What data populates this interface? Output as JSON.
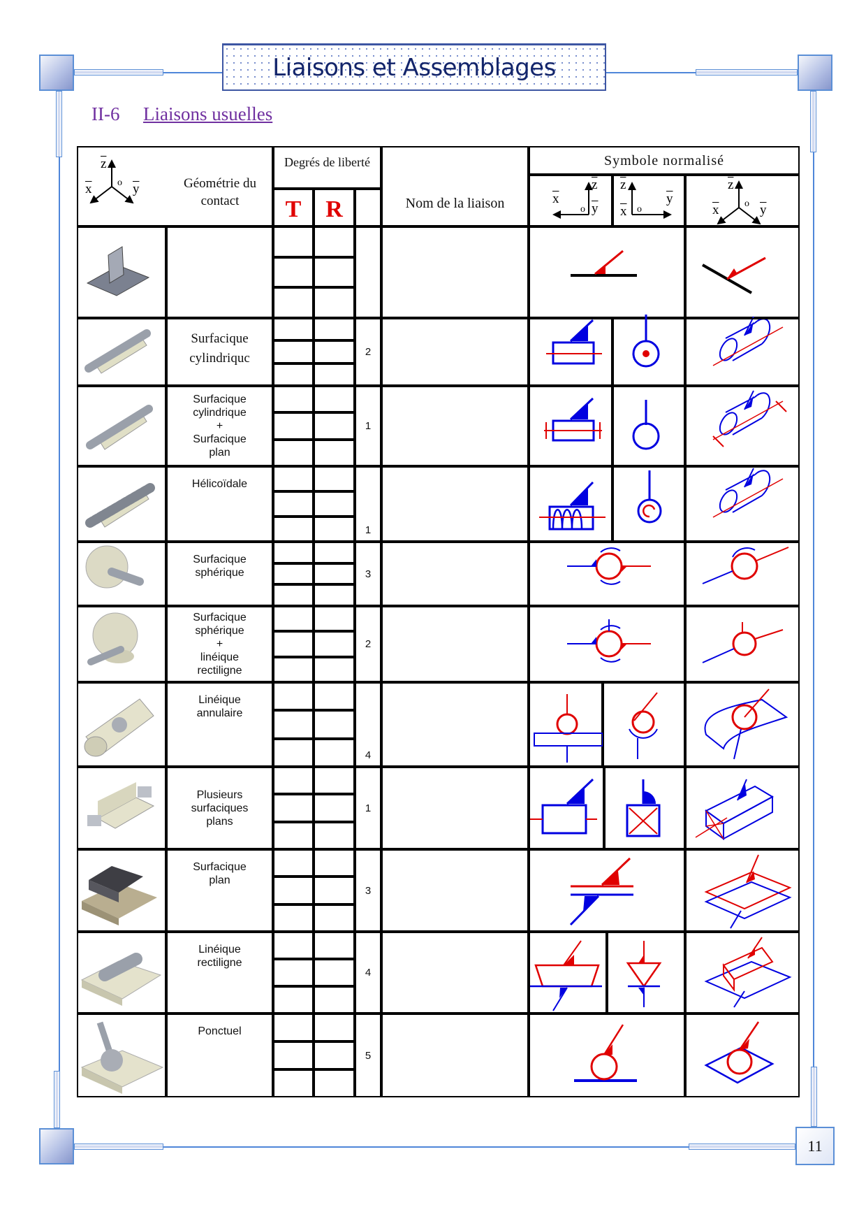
{
  "header": {
    "title": "Liaisons et Assemblages"
  },
  "section": {
    "number": "II-6",
    "title": "Liaisons usuelles"
  },
  "table": {
    "headers": {
      "geometry": "Géométrie du contact",
      "dof": "Degrés de liberté",
      "t": "T",
      "r": "R",
      "name": "Nom de la liaison",
      "symbol": "Symbole normalisé"
    },
    "axes_labels": {
      "x": "x",
      "y": "y",
      "z": "z",
      "o": "o"
    },
    "rows": [
      {
        "contact": [],
        "dof": "",
        "image": "plate-with-rib",
        "symbol": "plane-line-symbol"
      },
      {
        "contact": [
          "Surfacique",
          "cylindriquc"
        ],
        "dof": "2",
        "image": "shaft-in-bore",
        "symbol": "cylindrical-pivot-sliding-symbol"
      },
      {
        "contact": [
          "Surfacique",
          "cylindrique",
          "+",
          "Surfacique",
          "plan"
        ],
        "dof": "1",
        "image": "shaft-with-shoulder",
        "symbol": "pivot-symbol"
      },
      {
        "contact": [
          "Hélicoïdale"
        ],
        "dof": "1",
        "image": "screw-in-nut",
        "symbol": "helical-symbol"
      },
      {
        "contact": [
          "Surfacique",
          "sphérique"
        ],
        "dof": "3",
        "image": "ball-joint",
        "symbol": "spherical-symbol"
      },
      {
        "contact": [
          "Surfacique",
          "sphérique",
          "+",
          "linéique",
          "rectiligne"
        ],
        "dof": "2",
        "image": "ball-joint-with-finger",
        "symbol": "spherical-finger-symbol"
      },
      {
        "contact": [
          "Linéique",
          "annulaire"
        ],
        "dof": "4",
        "image": "ball-in-tube",
        "symbol": "annular-linear-symbol"
      },
      {
        "contact": [
          "Plusieurs",
          "surfaciques",
          "plans"
        ],
        "dof": "1",
        "image": "prismatic-block",
        "symbol": "slide-symbol"
      },
      {
        "contact": [
          "Surfacique",
          "plan"
        ],
        "dof": "3",
        "image": "block-on-plate",
        "symbol": "plane-contact-symbol"
      },
      {
        "contact": [
          "Linéique",
          "rectiligne"
        ],
        "dof": "4",
        "image": "cylinder-on-plate",
        "symbol": "linear-rectilinear-symbol"
      },
      {
        "contact": [
          "Ponctuel"
        ],
        "dof": "5",
        "image": "ball-on-plate",
        "symbol": "point-contact-symbol"
      }
    ]
  },
  "footer": {
    "page_number": "11"
  },
  "colors": {
    "frame": "#4f86d9",
    "title": "#13256b",
    "heading": "#7030a0",
    "symbol_red": "#e00000",
    "symbol_blue": "#0000e0",
    "tr_red": "#e00000"
  }
}
